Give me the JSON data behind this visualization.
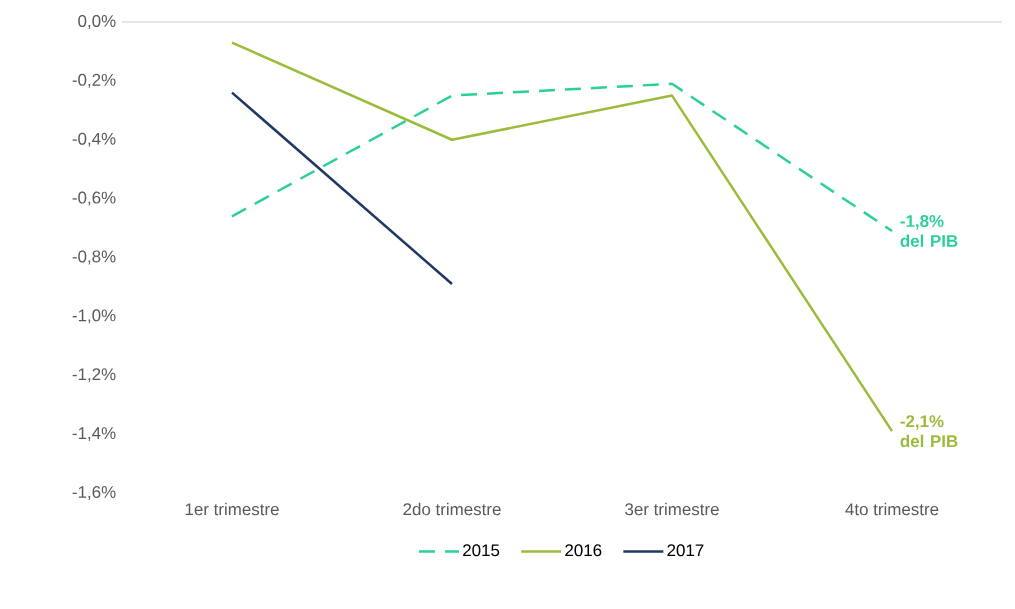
{
  "chart_data": {
    "type": "line",
    "categories": [
      "1er trimestre",
      "2do trimestre",
      "3er trimestre",
      "4to trimestre"
    ],
    "series": [
      {
        "name": "2015",
        "color": "#2ccf9c",
        "line_style": "dashed",
        "values": [
          -0.66,
          -0.25,
          -0.21,
          -0.71
        ]
      },
      {
        "name": "2016",
        "color": "#9bbb3b",
        "line_style": "solid",
        "values": [
          -0.07,
          -0.4,
          -0.25,
          -1.39
        ]
      },
      {
        "name": "2017",
        "color": "#1f3864",
        "line_style": "solid",
        "values": [
          -0.24,
          -0.89,
          null,
          null
        ]
      }
    ],
    "ylim": [
      -1.6,
      0.0
    ],
    "yticks": [
      {
        "value": 0.0,
        "label": "0,0%"
      },
      {
        "value": -0.2,
        "label": "-0,2%"
      },
      {
        "value": -0.4,
        "label": "-0,4%"
      },
      {
        "value": -0.6,
        "label": "-0,6%"
      },
      {
        "value": -0.8,
        "label": "-0,8%"
      },
      {
        "value": -1.0,
        "label": "-1,0%"
      },
      {
        "value": -1.2,
        "label": "-1,2%"
      },
      {
        "value": -1.4,
        "label": "-1,4%"
      },
      {
        "value": -1.6,
        "label": "-1,6%"
      }
    ],
    "annotations": [
      {
        "text": "-1,8% del PIB",
        "x": "4to trimestre",
        "y": -0.71
      },
      {
        "text": "-2,1% del PIB",
        "x": "4to trimestre",
        "y": -1.39
      }
    ],
    "grid": false,
    "legend": "bottom",
    "marker": "none"
  }
}
